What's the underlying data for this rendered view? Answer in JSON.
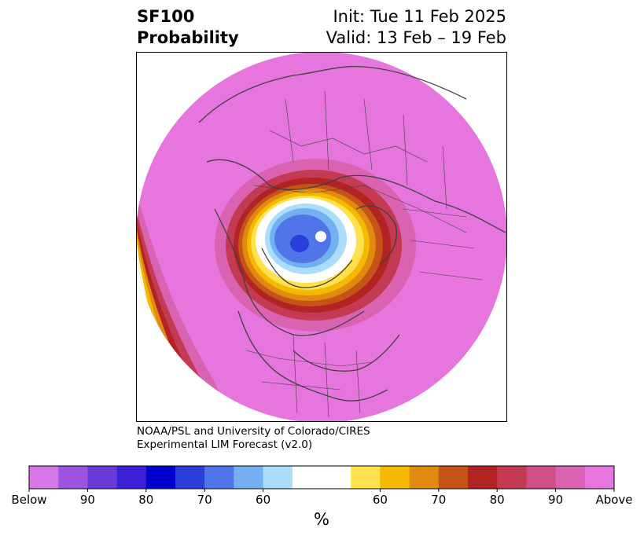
{
  "title": {
    "variable": "SF100",
    "kind": "Probability",
    "init": "Init: Tue 11 Feb 2025",
    "valid": "Valid: 13 Feb – 19 Feb"
  },
  "credit": {
    "line1": "NOAA/PSL and University of Colorado/CIRES",
    "line2": "Experimental LIM Forecast (v2.0)"
  },
  "colorbar": {
    "unit": "%",
    "tick_labels": [
      "Below",
      "90",
      "80",
      "70",
      "60",
      "60",
      "70",
      "80",
      "90",
      "Above"
    ],
    "colors": [
      "#d877e8",
      "#9b55e0",
      "#6a39d8",
      "#3c1fd6",
      "#0000cc",
      "#2c3fdd",
      "#4f75e8",
      "#73b0f2",
      "#aadcfb",
      "#ffffff",
      "#ffffff",
      "#ffe14d",
      "#f4b900",
      "#e08a10",
      "#c45417",
      "#b22424",
      "#c33a52",
      "#cd4f86",
      "#da63b1",
      "#e676dd"
    ]
  },
  "map_colors": {
    "background": "#e676dd",
    "land_lines": "#404040"
  }
}
